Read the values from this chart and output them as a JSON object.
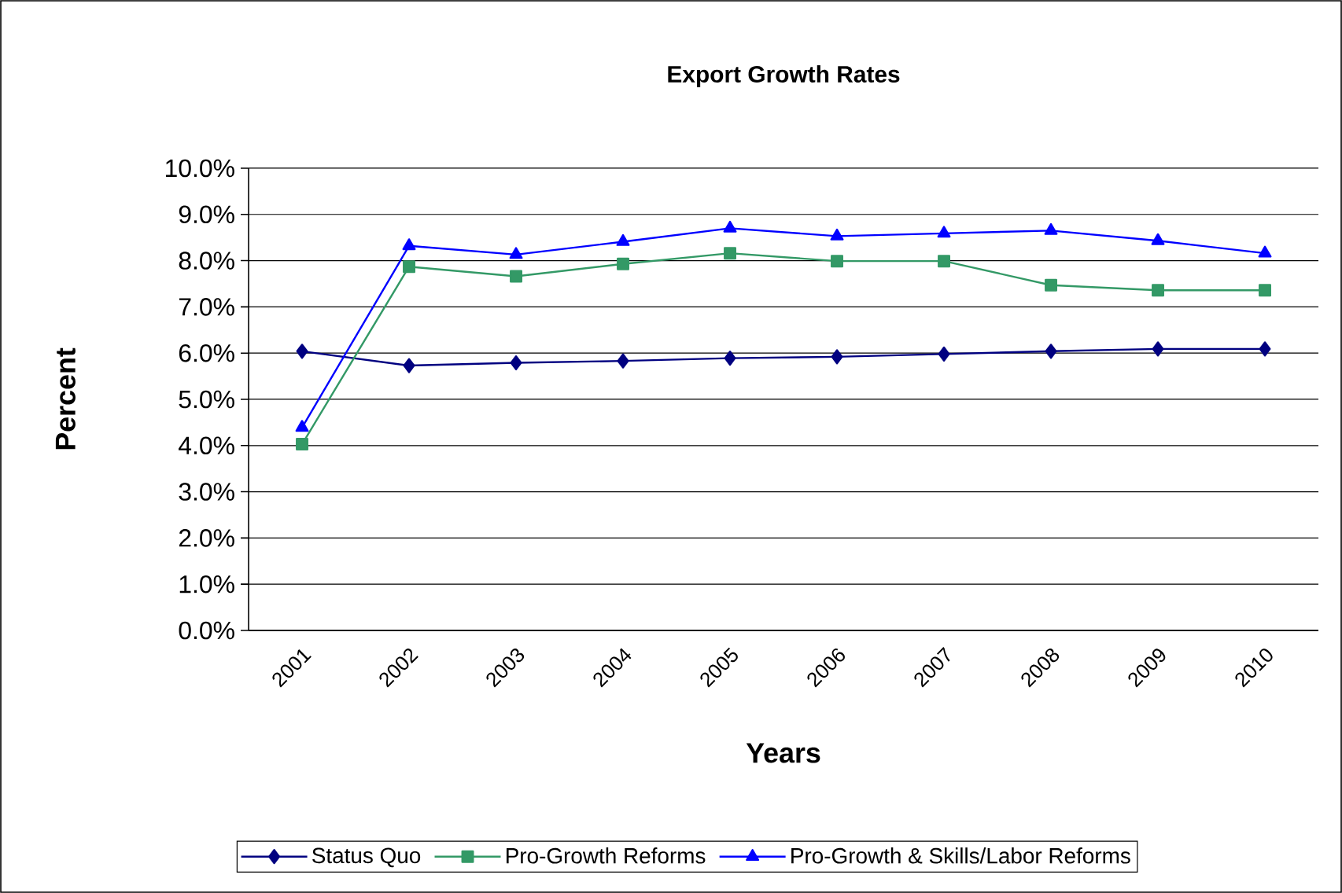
{
  "chart_data": {
    "type": "line",
    "title": "Export Growth Rates",
    "xlabel": "Years",
    "ylabel": "Percent",
    "categories": [
      "2001",
      "2002",
      "2003",
      "2004",
      "2005",
      "2006",
      "2007",
      "2008",
      "2009",
      "2010"
    ],
    "series": [
      {
        "name": "Status Quo",
        "color": "#000080",
        "marker": "diamond",
        "values": [
          6.04,
          5.73,
          5.79,
          5.83,
          5.89,
          5.92,
          5.98,
          6.04,
          6.09,
          6.09
        ]
      },
      {
        "name": "Pro-Growth Reforms",
        "color": "#339966",
        "marker": "square",
        "values": [
          4.03,
          7.87,
          7.66,
          7.93,
          8.16,
          7.99,
          7.99,
          7.47,
          7.36,
          7.36
        ]
      },
      {
        "name": "Pro-Growth & Skills/Labor Reforms",
        "color": "#0000ff",
        "marker": "triangle",
        "values": [
          4.39,
          8.32,
          8.13,
          8.41,
          8.7,
          8.53,
          8.59,
          8.65,
          8.43,
          8.16
        ]
      }
    ],
    "ylim": [
      0,
      10
    ],
    "yticks": [
      {
        "value": 0,
        "label": "0.0%"
      },
      {
        "value": 1,
        "label": "1.0%"
      },
      {
        "value": 2,
        "label": "2.0%"
      },
      {
        "value": 3,
        "label": "3.0%"
      },
      {
        "value": 4,
        "label": "4.0%"
      },
      {
        "value": 5,
        "label": "5.0%"
      },
      {
        "value": 6,
        "label": "6.0%"
      },
      {
        "value": 7,
        "label": "7.0%"
      },
      {
        "value": 8,
        "label": "8.0%"
      },
      {
        "value": 9,
        "label": "9.0%"
      },
      {
        "value": 10,
        "label": "10.0%"
      }
    ],
    "grid": "y",
    "legend": "bottom",
    "line_style": "solid"
  }
}
